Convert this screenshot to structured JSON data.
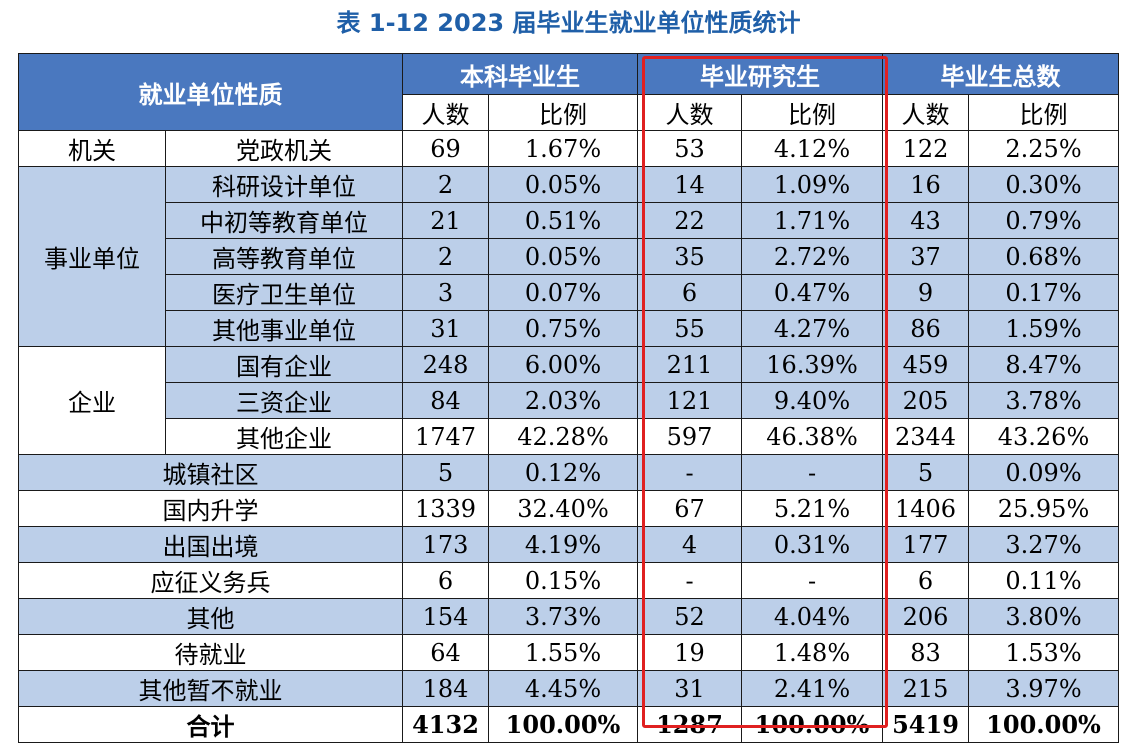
{
  "title": "表 1-12  2023 届毕业生就业单位性质统计",
  "header": {
    "col_type": "就业单位性质",
    "groups": [
      "本科毕业生",
      "毕业研究生",
      "毕业生总数"
    ],
    "count_label": "人数",
    "ratio_label": "比例"
  },
  "categories": {
    "jiguan": "机关",
    "shiye": "事业单位",
    "qiye": "企业"
  },
  "rows": [
    {
      "name": "党政机关",
      "b_n": "69",
      "b_p": "1.67%",
      "g_n": "53",
      "g_p": "4.12%",
      "t_n": "122",
      "t_p": "2.25%"
    },
    {
      "name": "科研设计单位",
      "b_n": "2",
      "b_p": "0.05%",
      "g_n": "14",
      "g_p": "1.09%",
      "t_n": "16",
      "t_p": "0.30%"
    },
    {
      "name": "中初等教育单位",
      "b_n": "21",
      "b_p": "0.51%",
      "g_n": "22",
      "g_p": "1.71%",
      "t_n": "43",
      "t_p": "0.79%"
    },
    {
      "name": "高等教育单位",
      "b_n": "2",
      "b_p": "0.05%",
      "g_n": "35",
      "g_p": "2.72%",
      "t_n": "37",
      "t_p": "0.68%"
    },
    {
      "name": "医疗卫生单位",
      "b_n": "3",
      "b_p": "0.07%",
      "g_n": "6",
      "g_p": "0.47%",
      "t_n": "9",
      "t_p": "0.17%"
    },
    {
      "name": "其他事业单位",
      "b_n": "31",
      "b_p": "0.75%",
      "g_n": "55",
      "g_p": "4.27%",
      "t_n": "86",
      "t_p": "1.59%"
    },
    {
      "name": "国有企业",
      "b_n": "248",
      "b_p": "6.00%",
      "g_n": "211",
      "g_p": "16.39%",
      "t_n": "459",
      "t_p": "8.47%"
    },
    {
      "name": "三资企业",
      "b_n": "84",
      "b_p": "2.03%",
      "g_n": "121",
      "g_p": "9.40%",
      "t_n": "205",
      "t_p": "3.78%"
    },
    {
      "name": "其他企业",
      "b_n": "1747",
      "b_p": "42.28%",
      "g_n": "597",
      "g_p": "46.38%",
      "t_n": "2344",
      "t_p": "43.26%"
    },
    {
      "name": "城镇社区",
      "b_n": "5",
      "b_p": "0.12%",
      "g_n": "-",
      "g_p": "-",
      "t_n": "5",
      "t_p": "0.09%"
    },
    {
      "name": "国内升学",
      "b_n": "1339",
      "b_p": "32.40%",
      "g_n": "67",
      "g_p": "5.21%",
      "t_n": "1406",
      "t_p": "25.95%"
    },
    {
      "name": "出国出境",
      "b_n": "173",
      "b_p": "4.19%",
      "g_n": "4",
      "g_p": "0.31%",
      "t_n": "177",
      "t_p": "3.27%"
    },
    {
      "name": "应征义务兵",
      "b_n": "6",
      "b_p": "0.15%",
      "g_n": "-",
      "g_p": "-",
      "t_n": "6",
      "t_p": "0.11%"
    },
    {
      "name": "其他",
      "b_n": "154",
      "b_p": "3.73%",
      "g_n": "52",
      "g_p": "4.04%",
      "t_n": "206",
      "t_p": "3.80%"
    },
    {
      "name": "待就业",
      "b_n": "64",
      "b_p": "1.55%",
      "g_n": "19",
      "g_p": "1.48%",
      "t_n": "83",
      "t_p": "1.53%"
    },
    {
      "name": "其他暂不就业",
      "b_n": "184",
      "b_p": "4.45%",
      "g_n": "31",
      "g_p": "2.41%",
      "t_n": "215",
      "t_p": "3.97%"
    }
  ],
  "total": {
    "name": "合计",
    "b_n": "4132",
    "b_p": "100.00%",
    "g_n": "1287",
    "g_p": "100.00%",
    "t_n": "5419",
    "t_p": "100.00%"
  },
  "colors": {
    "header_blue": "#4a78bf",
    "shade_blue": "#bccfe9",
    "title_blue": "#1f5fa8",
    "highlight_red": "#e02020"
  }
}
